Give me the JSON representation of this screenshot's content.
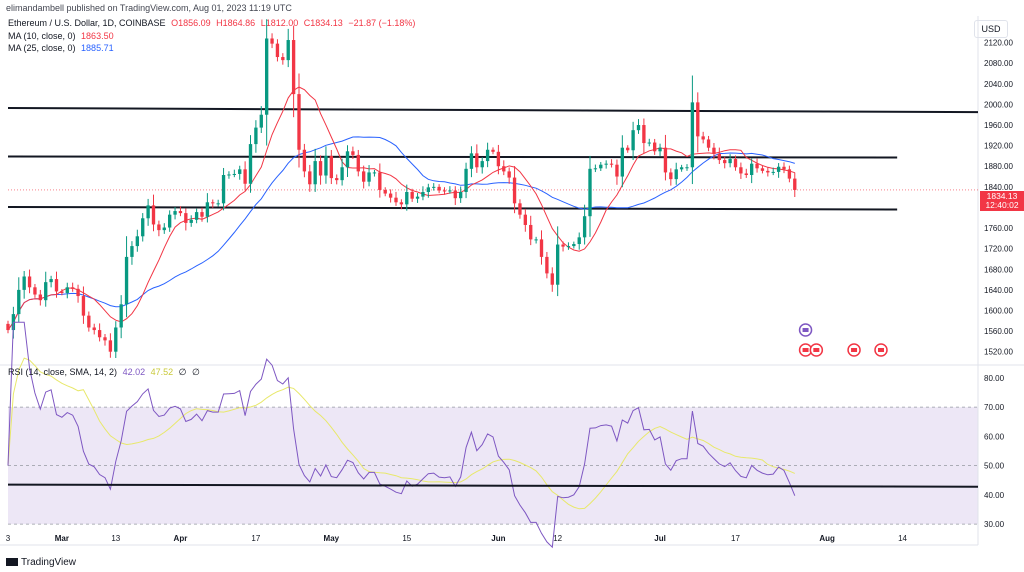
{
  "header": {
    "publisher": "elimandambell published on TradingView.com, Aug 01, 2023 11:19 UTC"
  },
  "main_legend": {
    "title": "Ethereum / U.S. Dollar, 1D, COINBASE",
    "o": "O1856.09",
    "h": "H1864.86",
    "l": "L1812.00",
    "c": "C1834.13",
    "chg": "−21.87 (−1.18%)",
    "ma10_label": "MA (10, close, 0)",
    "ma10_value": "1863.50",
    "ma25_label": "MA (25, close, 0)",
    "ma25_value": "1885.71"
  },
  "rsi_legend": {
    "label": "RSI (14, close, SMA, 14, 2)",
    "rsi_value": "42.02",
    "sma_value": "47.52",
    "extra1": "∅",
    "extra2": "∅"
  },
  "currency_button": "USD",
  "last_price_tag": {
    "price": "1834.13",
    "countdown": "12:40:02"
  },
  "footer": {
    "brand": "TradingView"
  },
  "colors": {
    "up": "#089981",
    "down": "#f23645",
    "ma10": "#f23645",
    "ma25": "#2962ff",
    "rsi": "#7e57c2",
    "rsi_sma": "#e8e86b",
    "rsi_band": "#ede7f6",
    "trendline": "#131722"
  },
  "chart_data": [
    {
      "type": "candlestick",
      "title": "Ethereum / U.S. Dollar, 1D, COINBASE",
      "ylim": [
        1500,
        2160
      ],
      "y_ticks": [
        "2120.00",
        "2080.00",
        "2040.00",
        "2000.00",
        "1960.00",
        "1920.00",
        "1880.00",
        "1840.00",
        "1800.00",
        "1760.00",
        "1720.00",
        "1680.00",
        "1640.00",
        "1600.00",
        "1560.00",
        "1520.00"
      ],
      "x_ticks": [
        "3",
        "Mar",
        "13",
        "Apr",
        "17",
        "May",
        "15",
        "Jun",
        "12",
        "Jul",
        "17",
        "Aug",
        "14"
      ],
      "x_tick_days": [
        0,
        10,
        20,
        32,
        46,
        60,
        74,
        91,
        102,
        121,
        135,
        152,
        166
      ],
      "last_day": 152,
      "closes": [
        1562,
        1593,
        1640,
        1666,
        1645,
        1631,
        1620,
        1655,
        1661,
        1637,
        1634,
        1645,
        1642,
        1628,
        1590,
        1567,
        1562,
        1548,
        1542,
        1520,
        1567,
        1612,
        1704,
        1725,
        1744,
        1779,
        1804,
        1767,
        1756,
        1761,
        1786,
        1793,
        1789,
        1770,
        1776,
        1791,
        1782,
        1810,
        1808,
        1808,
        1863,
        1864,
        1865,
        1874,
        1846,
        1923,
        1955,
        1980,
        2128,
        2118,
        2092,
        2086,
        2125,
        2020,
        1912,
        1870,
        1845,
        1890,
        1862,
        1900,
        1857,
        1853,
        1878,
        1909,
        1902,
        1870,
        1850,
        1868,
        1868,
        1834,
        1827,
        1819,
        1810,
        1806,
        1830,
        1817,
        1821,
        1830,
        1839,
        1840,
        1833,
        1832,
        1833,
        1818,
        1830,
        1875,
        1905,
        1878,
        1890,
        1912,
        1908,
        1880,
        1870,
        1858,
        1808,
        1786,
        1766,
        1738,
        1738,
        1704,
        1672,
        1650,
        1728,
        1724,
        1725,
        1729,
        1742,
        1783,
        1875,
        1876,
        1883,
        1885,
        1883,
        1860,
        1916,
        1911,
        1950,
        1960,
        1925,
        1926,
        1909,
        1916,
        1868,
        1855,
        1874,
        1878,
        1878,
        2004,
        1938,
        1932,
        1916,
        1904,
        1892,
        1886,
        1894,
        1878,
        1866,
        1863,
        1885,
        1876,
        1871,
        1868,
        1869,
        1879,
        1874,
        1856,
        1834
      ],
      "ma10_last": 1863.5,
      "ma25_last": 1885.71,
      "trendlines": [
        {
          "start": {
            "day": 0,
            "price": 1993
          },
          "end": {
            "day": 180,
            "price": 1985
          }
        },
        {
          "start": {
            "day": 0,
            "price": 1899
          },
          "end": {
            "day": 165,
            "price": 1897
          }
        },
        {
          "start": {
            "day": 0,
            "price": 1801
          },
          "end": {
            "day": 165,
            "price": 1796
          }
        }
      ]
    },
    {
      "type": "line",
      "title": "RSI (14, close, SMA, 14, 2)",
      "ylim": [
        28,
        82
      ],
      "y_ticks": [
        "80.00",
        "70.00",
        "60.00",
        "50.00",
        "40.00",
        "30.00"
      ],
      "band": [
        30,
        70
      ],
      "mid": 50,
      "rsi_last": 42.02,
      "sma_last": 47.52,
      "trendline": {
        "start": {
          "day": 0,
          "value": 43.5
        },
        "end": {
          "day": 180,
          "value": 42.8
        }
      }
    }
  ]
}
